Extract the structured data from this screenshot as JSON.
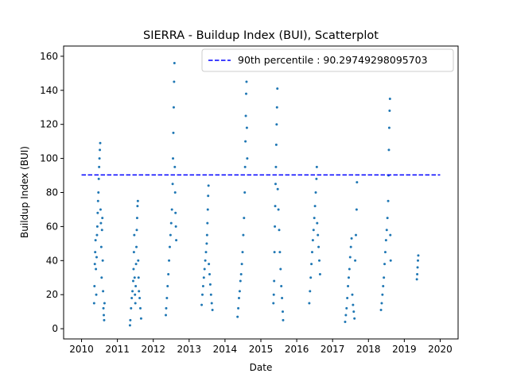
{
  "chart_data": {
    "type": "scatter",
    "title": "SIERRA - Buildup Index (BUI), Scatterplot",
    "xlabel": "Date",
    "ylabel": "Buildup Index (BUI)",
    "xlim": [
      2009.5,
      2020.5
    ],
    "ylim": [
      -6,
      166
    ],
    "x_ticks": [
      "2010",
      "2011",
      "2012",
      "2013",
      "2014",
      "2015",
      "2016",
      "2017",
      "2018",
      "2019",
      "2020"
    ],
    "y_ticks": [
      "0",
      "20",
      "40",
      "60",
      "80",
      "100",
      "120",
      "140",
      "160"
    ],
    "grid": false,
    "legend_position": "top-right",
    "point_color": "#1f77b4",
    "reference_line": {
      "label": "90th percentile : 90.29749298095703",
      "value": 90.29749298095703,
      "x_range": [
        2010.0,
        2020.0
      ],
      "color": "#0000ff",
      "style": "dashed"
    },
    "series": [
      {
        "points": [
          [
            2010.35,
            15
          ],
          [
            2010.36,
            25
          ],
          [
            2010.37,
            38
          ],
          [
            2010.38,
            45
          ],
          [
            2010.39,
            52
          ],
          [
            2010.4,
            35
          ],
          [
            2010.41,
            20
          ],
          [
            2010.42,
            42
          ],
          [
            2010.43,
            55
          ],
          [
            2010.44,
            60
          ],
          [
            2010.45,
            68
          ],
          [
            2010.46,
            75
          ],
          [
            2010.47,
            80
          ],
          [
            2010.48,
            88
          ],
          [
            2010.49,
            95
          ],
          [
            2010.5,
            100
          ],
          [
            2010.51,
            105
          ],
          [
            2010.52,
            109
          ],
          [
            2010.53,
            70
          ],
          [
            2010.54,
            62
          ],
          [
            2010.55,
            48
          ],
          [
            2010.56,
            30
          ],
          [
            2010.57,
            58
          ],
          [
            2010.58,
            65
          ],
          [
            2010.59,
            40
          ],
          [
            2010.6,
            22
          ],
          [
            2010.61,
            12
          ],
          [
            2010.62,
            8
          ],
          [
            2010.63,
            5
          ],
          [
            2010.64,
            15
          ],
          [
            2011.35,
            2
          ],
          [
            2011.36,
            5
          ],
          [
            2011.38,
            12
          ],
          [
            2011.4,
            18
          ],
          [
            2011.42,
            22
          ],
          [
            2011.44,
            28
          ],
          [
            2011.45,
            35
          ],
          [
            2011.46,
            45
          ],
          [
            2011.47,
            55
          ],
          [
            2011.48,
            30
          ],
          [
            2011.49,
            20
          ],
          [
            2011.5,
            15
          ],
          [
            2011.51,
            25
          ],
          [
            2011.52,
            38
          ],
          [
            2011.53,
            48
          ],
          [
            2011.54,
            58
          ],
          [
            2011.55,
            65
          ],
          [
            2011.56,
            72
          ],
          [
            2011.57,
            75
          ],
          [
            2011.58,
            40
          ],
          [
            2011.59,
            30
          ],
          [
            2011.6,
            22
          ],
          [
            2011.62,
            18
          ],
          [
            2011.64,
            12
          ],
          [
            2011.66,
            6
          ],
          [
            2012.35,
            8
          ],
          [
            2012.36,
            12
          ],
          [
            2012.38,
            18
          ],
          [
            2012.4,
            25
          ],
          [
            2012.42,
            32
          ],
          [
            2012.44,
            40
          ],
          [
            2012.46,
            48
          ],
          [
            2012.48,
            55
          ],
          [
            2012.5,
            62
          ],
          [
            2012.52,
            70
          ],
          [
            2012.54,
            85
          ],
          [
            2012.55,
            100
          ],
          [
            2012.56,
            115
          ],
          [
            2012.57,
            130
          ],
          [
            2012.58,
            145
          ],
          [
            2012.59,
            156
          ],
          [
            2012.6,
            95
          ],
          [
            2012.61,
            80
          ],
          [
            2012.62,
            68
          ],
          [
            2012.63,
            60
          ],
          [
            2012.64,
            52
          ],
          [
            2013.35,
            14
          ],
          [
            2013.37,
            20
          ],
          [
            2013.39,
            25
          ],
          [
            2013.41,
            30
          ],
          [
            2013.43,
            35
          ],
          [
            2013.45,
            40
          ],
          [
            2013.47,
            45
          ],
          [
            2013.49,
            50
          ],
          [
            2013.5,
            55
          ],
          [
            2013.51,
            62
          ],
          [
            2013.52,
            70
          ],
          [
            2013.53,
            78
          ],
          [
            2013.54,
            84
          ],
          [
            2013.55,
            38
          ],
          [
            2013.57,
            32
          ],
          [
            2013.59,
            26
          ],
          [
            2013.61,
            20
          ],
          [
            2013.63,
            15
          ],
          [
            2013.65,
            11
          ],
          [
            2014.35,
            7
          ],
          [
            2014.37,
            12
          ],
          [
            2014.39,
            18
          ],
          [
            2014.41,
            22
          ],
          [
            2014.43,
            28
          ],
          [
            2014.45,
            32
          ],
          [
            2014.47,
            38
          ],
          [
            2014.49,
            45
          ],
          [
            2014.51,
            55
          ],
          [
            2014.53,
            65
          ],
          [
            2014.55,
            80
          ],
          [
            2014.56,
            95
          ],
          [
            2014.57,
            110
          ],
          [
            2014.58,
            125
          ],
          [
            2014.59,
            138
          ],
          [
            2014.6,
            145
          ],
          [
            2014.61,
            118
          ],
          [
            2014.62,
            100
          ],
          [
            2015.35,
            15
          ],
          [
            2015.36,
            20
          ],
          [
            2015.37,
            28
          ],
          [
            2015.38,
            45
          ],
          [
            2015.39,
            60
          ],
          [
            2015.4,
            72
          ],
          [
            2015.41,
            85
          ],
          [
            2015.42,
            95
          ],
          [
            2015.43,
            108
          ],
          [
            2015.44,
            120
          ],
          [
            2015.45,
            130
          ],
          [
            2015.46,
            141
          ],
          [
            2015.47,
            82
          ],
          [
            2015.49,
            70
          ],
          [
            2015.51,
            58
          ],
          [
            2015.53,
            45
          ],
          [
            2015.55,
            35
          ],
          [
            2015.57,
            25
          ],
          [
            2015.59,
            18
          ],
          [
            2015.61,
            10
          ],
          [
            2015.62,
            5
          ],
          [
            2016.35,
            15
          ],
          [
            2016.37,
            22
          ],
          [
            2016.39,
            30
          ],
          [
            2016.41,
            38
          ],
          [
            2016.43,
            45
          ],
          [
            2016.45,
            52
          ],
          [
            2016.47,
            58
          ],
          [
            2016.49,
            65
          ],
          [
            2016.51,
            72
          ],
          [
            2016.53,
            80
          ],
          [
            2016.55,
            88
          ],
          [
            2016.56,
            95
          ],
          [
            2016.57,
            62
          ],
          [
            2016.59,
            55
          ],
          [
            2016.61,
            48
          ],
          [
            2016.63,
            40
          ],
          [
            2016.65,
            32
          ],
          [
            2017.35,
            4
          ],
          [
            2017.37,
            8
          ],
          [
            2017.39,
            12
          ],
          [
            2017.41,
            18
          ],
          [
            2017.43,
            25
          ],
          [
            2017.45,
            30
          ],
          [
            2017.47,
            35
          ],
          [
            2017.49,
            42
          ],
          [
            2017.51,
            48
          ],
          [
            2017.53,
            53
          ],
          [
            2017.55,
            20
          ],
          [
            2017.57,
            14
          ],
          [
            2017.59,
            10
          ],
          [
            2017.61,
            6
          ],
          [
            2017.63,
            40
          ],
          [
            2017.65,
            55
          ],
          [
            2017.67,
            70
          ],
          [
            2017.68,
            86
          ],
          [
            2018.35,
            11
          ],
          [
            2018.37,
            15
          ],
          [
            2018.39,
            20
          ],
          [
            2018.41,
            25
          ],
          [
            2018.43,
            30
          ],
          [
            2018.45,
            38
          ],
          [
            2018.47,
            45
          ],
          [
            2018.49,
            52
          ],
          [
            2018.51,
            58
          ],
          [
            2018.53,
            65
          ],
          [
            2018.55,
            75
          ],
          [
            2018.56,
            90
          ],
          [
            2018.57,
            105
          ],
          [
            2018.58,
            118
          ],
          [
            2018.59,
            128
          ],
          [
            2018.6,
            135
          ],
          [
            2018.61,
            55
          ],
          [
            2018.62,
            40
          ],
          [
            2019.35,
            29
          ],
          [
            2019.36,
            32
          ],
          [
            2019.37,
            36
          ],
          [
            2019.38,
            40
          ],
          [
            2019.39,
            43
          ]
        ]
      }
    ]
  }
}
